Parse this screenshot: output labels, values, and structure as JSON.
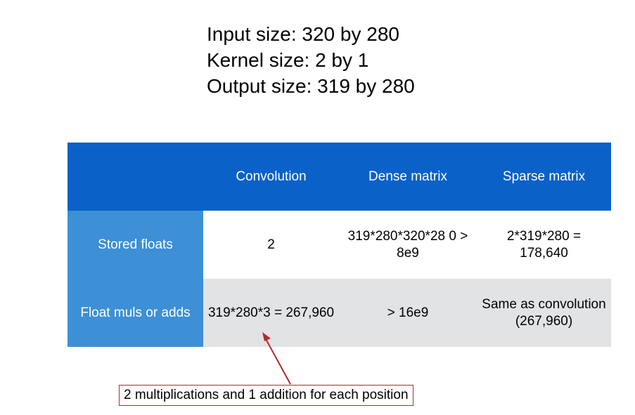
{
  "info": {
    "input_size": "Input size: 320 by 280",
    "kernel_size": "Kernel size: 2 by 1",
    "output_size": "Output size: 319 by 280"
  },
  "table": {
    "columns": [
      "",
      "Convolution",
      "Dense matrix",
      "Sparse matrix"
    ],
    "rows": [
      {
        "label": "Stored floats",
        "cells": [
          "2",
          "319*280*320*28 0 > 8e9",
          "2*319*280 = 178,640"
        ]
      },
      {
        "label": "Float muls or adds",
        "cells": [
          "319*280*3 = 267,960",
          "> 16e9",
          "Same as convolution (267,960)"
        ]
      }
    ]
  },
  "colors": {
    "header_blue": "#0a61c8",
    "row_header_blue": "#3d8fd6",
    "row_gray": "#e2e3e5",
    "arrow_red": "#b22a2a"
  },
  "callout": {
    "text": "2 multiplications and 1 addition for each position"
  }
}
